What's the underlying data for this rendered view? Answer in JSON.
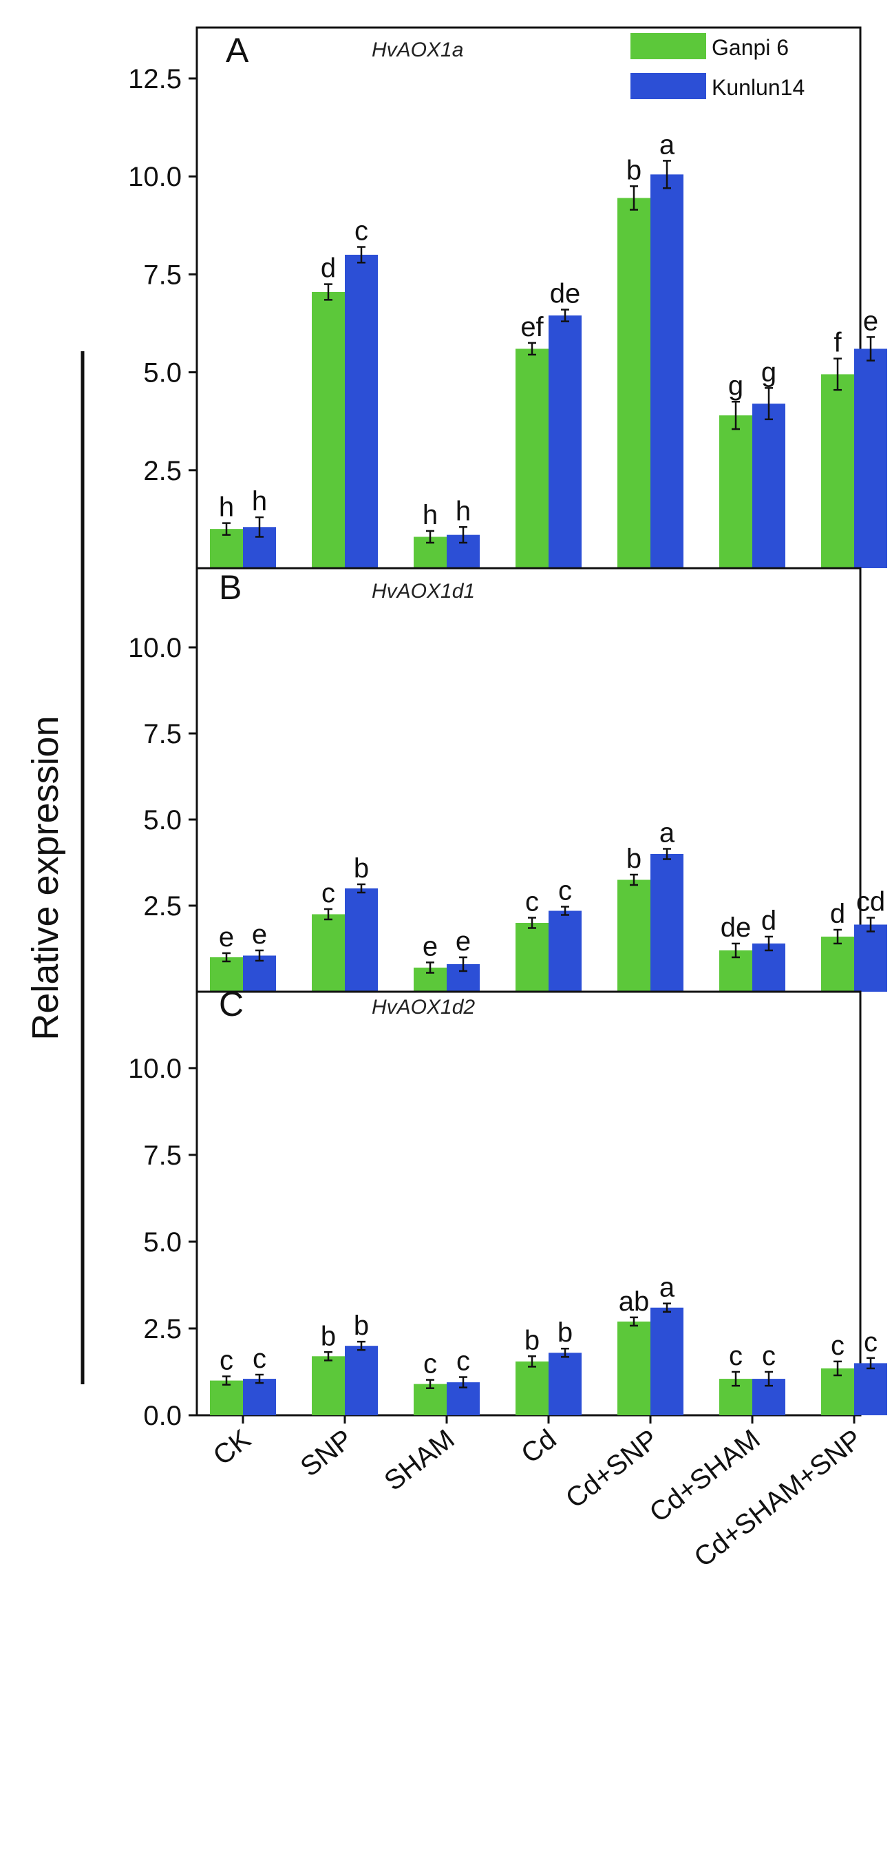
{
  "colors": {
    "ganpi": "#5cc83a",
    "kunlun": "#2c4fd6",
    "axis": "#111111"
  },
  "figure": {
    "ylabel": "Relative expression",
    "legend": [
      {
        "name": "Ganpi 6",
        "color": "#5cc83a"
      },
      {
        "name": "Kunlun14",
        "color": "#2c4fd6"
      }
    ]
  },
  "chart_data": [
    {
      "type": "bar",
      "panel": "A",
      "title": "HvAOX1a",
      "categories": [
        "CK",
        "SNP",
        "SHAM",
        "Cd",
        "Cd+SNP",
        "Cd+SHAM",
        "Cd+SHAM+SNP"
      ],
      "ylim": [
        0,
        13.8
      ],
      "yticks": [
        2.5,
        5.0,
        7.5,
        10.0,
        12.5
      ],
      "ytick_labels": [
        "2.5",
        "5.0",
        "7.5",
        "10.0",
        "12.5"
      ],
      "series": [
        {
          "name": "Ganpi 6",
          "values": [
            1.0,
            7.05,
            0.8,
            5.6,
            9.45,
            3.9,
            4.95
          ],
          "errors": [
            0.15,
            0.2,
            0.15,
            0.15,
            0.3,
            0.35,
            0.4
          ],
          "letters": [
            "h",
            "d",
            "h",
            "ef",
            "b",
            "g",
            "f"
          ]
        },
        {
          "name": "Kunlun14",
          "values": [
            1.05,
            8.0,
            0.85,
            6.45,
            10.05,
            4.2,
            5.6
          ],
          "errors": [
            0.25,
            0.2,
            0.2,
            0.15,
            0.35,
            0.4,
            0.3
          ],
          "letters": [
            "h",
            "c",
            "h",
            "de",
            "a",
            "g",
            "e"
          ]
        }
      ]
    },
    {
      "type": "bar",
      "panel": "B",
      "title": "HvAOX1d1",
      "categories": [
        "CK",
        "SNP",
        "SHAM",
        "Cd",
        "Cd+SNP",
        "Cd+SHAM",
        "Cd+SHAM+SNP"
      ],
      "ylim": [
        0,
        12.3
      ],
      "yticks": [
        2.5,
        5.0,
        7.5,
        10.0
      ],
      "ytick_labels": [
        "2.5",
        "5.0",
        "7.5",
        "10.0"
      ],
      "series": [
        {
          "name": "Ganpi 6",
          "values": [
            1.0,
            2.25,
            0.7,
            2.0,
            3.25,
            1.2,
            1.6
          ],
          "errors": [
            0.12,
            0.15,
            0.15,
            0.15,
            0.15,
            0.2,
            0.2
          ],
          "letters": [
            "e",
            "c",
            "e",
            "c",
            "b",
            "de",
            "d"
          ]
        },
        {
          "name": "Kunlun14",
          "values": [
            1.05,
            3.0,
            0.8,
            2.35,
            4.0,
            1.4,
            1.95
          ],
          "errors": [
            0.15,
            0.12,
            0.2,
            0.12,
            0.15,
            0.2,
            0.2
          ],
          "letters": [
            "e",
            "b",
            "e",
            "c",
            "a",
            "d",
            "cd"
          ]
        }
      ]
    },
    {
      "type": "bar",
      "panel": "C",
      "title": "HvAOX1d2",
      "categories": [
        "CK",
        "SNP",
        "SHAM",
        "Cd",
        "Cd+SNP",
        "Cd+SHAM",
        "Cd+SHAM+SNP"
      ],
      "ylim": [
        0,
        12.2
      ],
      "yticks": [
        0.0,
        2.5,
        5.0,
        7.5,
        10.0
      ],
      "ytick_labels": [
        "0.0",
        "2.5",
        "5.0",
        "7.5",
        "10.0"
      ],
      "series": [
        {
          "name": "Ganpi 6",
          "values": [
            1.0,
            1.7,
            0.9,
            1.55,
            2.7,
            1.05,
            1.35
          ],
          "errors": [
            0.12,
            0.12,
            0.12,
            0.15,
            0.12,
            0.2,
            0.2
          ],
          "letters": [
            "c",
            "b",
            "c",
            "b",
            "ab",
            "c",
            "c"
          ]
        },
        {
          "name": "Kunlun14",
          "values": [
            1.05,
            2.0,
            0.95,
            1.8,
            3.1,
            1.05,
            1.5
          ],
          "errors": [
            0.12,
            0.12,
            0.15,
            0.12,
            0.12,
            0.2,
            0.15
          ],
          "letters": [
            "c",
            "b",
            "c",
            "b",
            "a",
            "c",
            "c"
          ]
        }
      ]
    }
  ]
}
